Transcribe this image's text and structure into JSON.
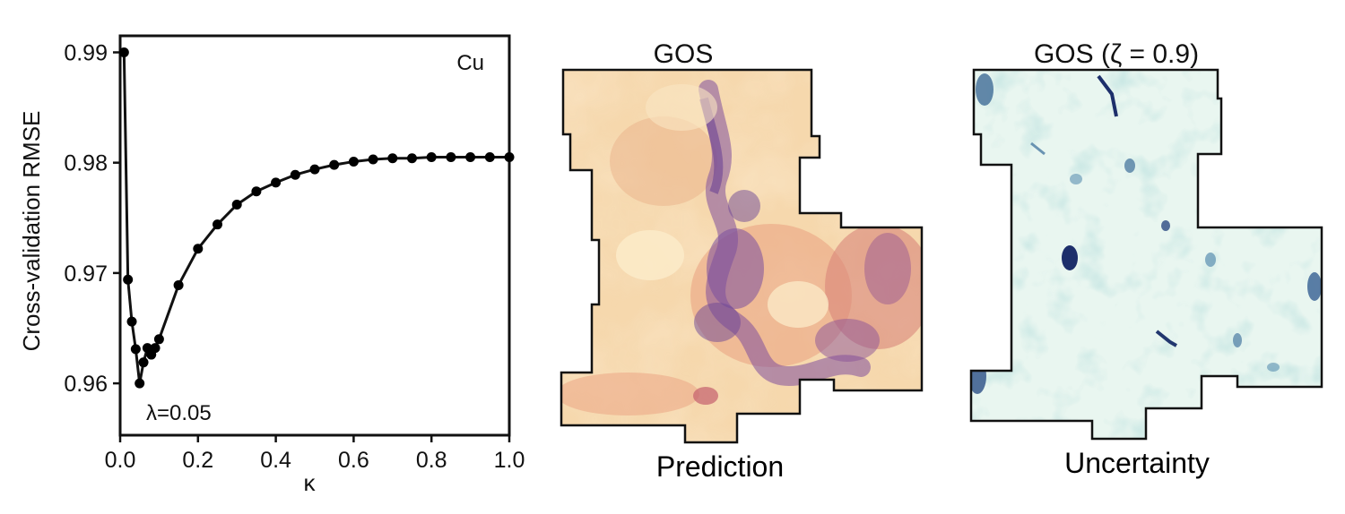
{
  "chart_data": {
    "type": "line",
    "xlabel": "κ",
    "ylabel": "Cross-validation RMSE",
    "xlim": [
      0.0,
      1.0
    ],
    "ylim": [
      0.9553,
      0.9915
    ],
    "x_ticks": [
      "0.0",
      "0.2",
      "0.4",
      "0.6",
      "0.8",
      "1.0"
    ],
    "x_tick_values": [
      0.0,
      0.2,
      0.4,
      0.6,
      0.8,
      1.0
    ],
    "y_ticks": [
      "0.96",
      "0.97",
      "0.98",
      "0.99"
    ],
    "y_tick_values": [
      0.96,
      0.97,
      0.98,
      0.99
    ],
    "grid": false,
    "series": [
      {
        "name": "Cu",
        "x": [
          0.01,
          0.02,
          0.03,
          0.04,
          0.05,
          0.06,
          0.07,
          0.08,
          0.09,
          0.1,
          0.15,
          0.2,
          0.25,
          0.3,
          0.35,
          0.4,
          0.45,
          0.5,
          0.55,
          0.6,
          0.65,
          0.7,
          0.75,
          0.8,
          0.85,
          0.9,
          0.95,
          1.0
        ],
        "values": [
          0.99,
          0.9694,
          0.9656,
          0.9631,
          0.96,
          0.9619,
          0.9632,
          0.9626,
          0.9632,
          0.964,
          0.9689,
          0.9722,
          0.9744,
          0.9762,
          0.9774,
          0.9782,
          0.9789,
          0.9794,
          0.9798,
          0.9801,
          0.9803,
          0.9804,
          0.9804,
          0.9805,
          0.9805,
          0.9805,
          0.9805,
          0.9805
        ],
        "color": "#000000"
      }
    ],
    "annotations": {
      "series_label": "Cu",
      "min_label": "λ=0.05"
    }
  },
  "maps": {
    "prediction": {
      "title": "GOS",
      "caption": "Prediction",
      "colormap": [
        "#f7dfb2",
        "#e8a37c",
        "#c96b74",
        "#7a4f9e"
      ]
    },
    "uncertainty": {
      "title": "GOS (ζ = 0.9)",
      "caption": "Uncertainty",
      "colormap": [
        "#eef8f3",
        "#c4e8dc",
        "#7cc0b8",
        "#1f3f7a"
      ]
    }
  }
}
